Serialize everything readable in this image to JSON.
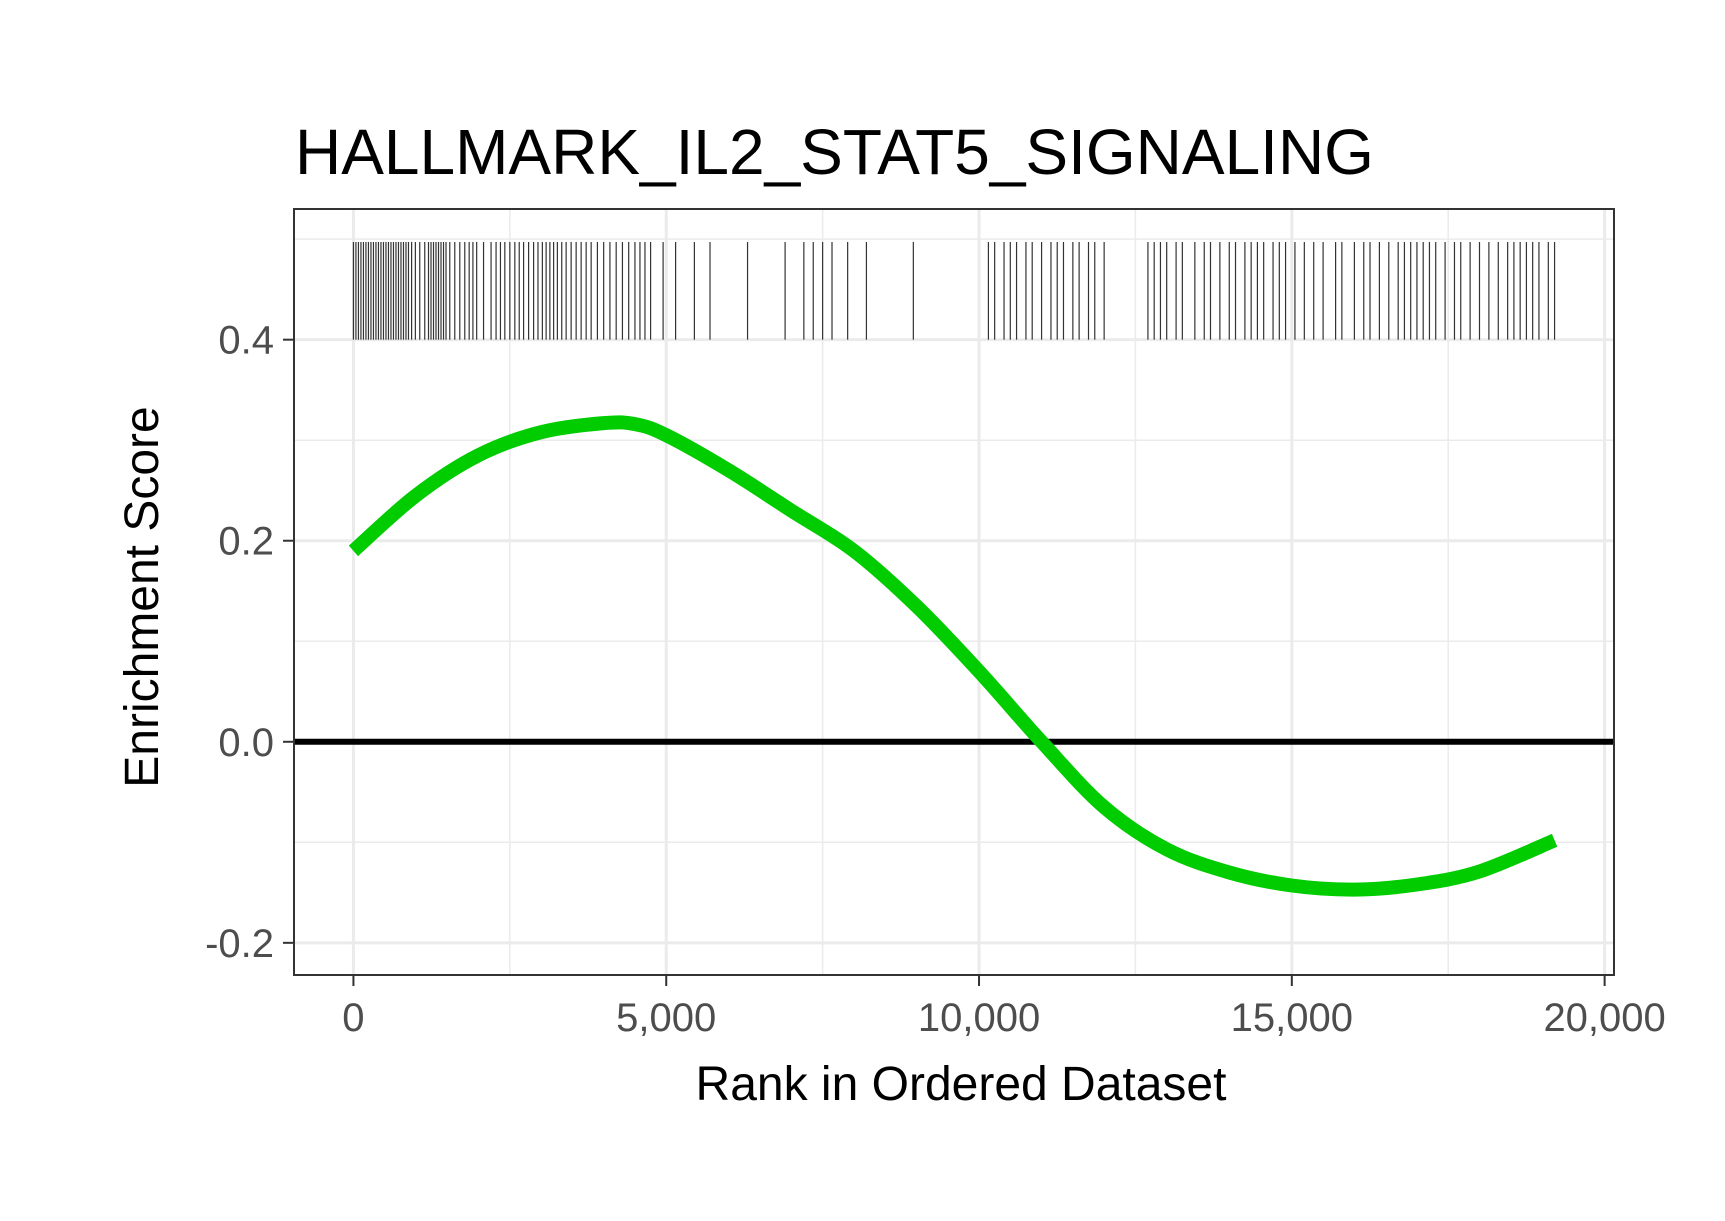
{
  "chart_data": {
    "type": "line",
    "title": "HALLMARK_IL2_STAT5_SIGNALING",
    "xlabel": "Rank in Ordered Dataset",
    "ylabel": "Enrichment Score",
    "xlim": [
      -950,
      20150
    ],
    "ylim": [
      -0.232,
      0.53
    ],
    "x_ticks": [
      0,
      5000,
      10000,
      15000,
      20000
    ],
    "x_tick_labels": [
      "0",
      "5,000",
      "10,000",
      "15,000",
      "20,000"
    ],
    "y_ticks": [
      -0.2,
      0.0,
      0.2,
      0.4
    ],
    "y_tick_labels": [
      "-0.2",
      "0.0",
      "0.2",
      "0.4"
    ],
    "grid": true,
    "legend": "none",
    "reference_line_y": 0,
    "colors": {
      "curve": "#00cc00",
      "rug": "#333333",
      "grid": "#ebebeb",
      "border": "#333333"
    },
    "series": [
      {
        "x": [
          0,
          1000,
          2000,
          3000,
          4000,
          4500,
          5000,
          6000,
          7000,
          8000,
          9000,
          10000,
          11000,
          12000,
          13000,
          14000,
          15000,
          16000,
          17000,
          18000,
          19200
        ],
        "values": [
          0.19,
          0.245,
          0.285,
          0.308,
          0.317,
          0.316,
          0.305,
          0.27,
          0.23,
          0.19,
          0.135,
          0.07,
          0.0,
          -0.065,
          -0.107,
          -0.13,
          -0.143,
          -0.147,
          -0.142,
          -0.129,
          -0.098
        ]
      }
    ],
    "gene_hit_ranks": [
      0,
      40,
      80,
      120,
      160,
      200,
      240,
      280,
      320,
      360,
      400,
      440,
      480,
      520,
      560,
      600,
      640,
      680,
      720,
      760,
      800,
      840,
      880,
      930,
      990,
      1060,
      1140,
      1200,
      1240,
      1280,
      1320,
      1360,
      1400,
      1440,
      1480,
      1540,
      1620,
      1700,
      1780,
      1850,
      1910,
      1970,
      2080,
      2200,
      2280,
      2350,
      2420,
      2500,
      2580,
      2650,
      2720,
      2800,
      2880,
      2950,
      3020,
      3080,
      3140,
      3200,
      3260,
      3330,
      3400,
      3480,
      3560,
      3640,
      3720,
      3800,
      3900,
      4000,
      4100,
      4200,
      4300,
      4400,
      4500,
      4580,
      4660,
      4750,
      4950,
      5150,
      5450,
      5700,
      6300,
      6900,
      7200,
      7350,
      7500,
      7650,
      7900,
      8200,
      8950,
      10150,
      10250,
      10400,
      10500,
      10600,
      10750,
      10850,
      11000,
      11150,
      11250,
      11350,
      11500,
      11600,
      11750,
      11850,
      12000,
      12700,
      12800,
      12900,
      13000,
      13150,
      13250,
      13450,
      13600,
      13700,
      13850,
      14000,
      14100,
      14250,
      14350,
      14450,
      14550,
      14700,
      14800,
      14900,
      15050,
      15200,
      15350,
      15500,
      15700,
      15800,
      16000,
      16150,
      16250,
      16400,
      16550,
      16700,
      16800,
      16900,
      17000,
      17100,
      17200,
      17300,
      17450,
      17600,
      17700,
      17850,
      18000,
      18150,
      18300,
      18450,
      18550,
      18650,
      18750,
      18850,
      18950,
      19100,
      19200
    ]
  }
}
